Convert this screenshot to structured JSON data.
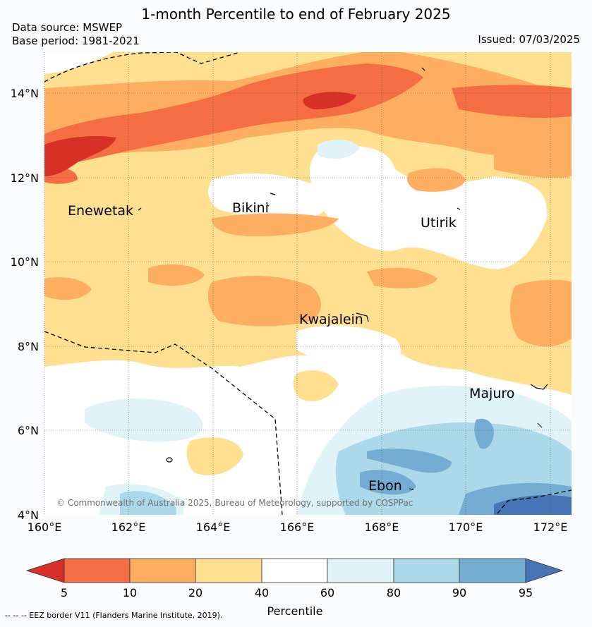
{
  "title": "1-month Percentile to end of February 2025",
  "data_source": "Data source: MSWEP",
  "base_period": "Base period: 1981-2021",
  "issued": "Issued: 07/03/2025",
  "map": {
    "lon_ticks": [
      "160°E",
      "162°E",
      "164°E",
      "166°E",
      "168°E",
      "170°E",
      "172°E"
    ],
    "lat_ticks": [
      "14°N",
      "12°N",
      "10°N",
      "8°N",
      "6°N",
      "4°N"
    ],
    "places": [
      {
        "id": "enewetak",
        "name": "Enewetak"
      },
      {
        "id": "bikini",
        "name": "Bikini"
      },
      {
        "id": "utirik",
        "name": "Utirik"
      },
      {
        "id": "kwajalein",
        "name": "Kwajalein"
      },
      {
        "id": "majuro",
        "name": "Majuro"
      },
      {
        "id": "ebon",
        "name": "Ebon"
      }
    ],
    "copyright": "© Commonwealth of Australia 2025, Bureau of Meteorology, supported by COSPPac"
  },
  "colorbar": {
    "title": "Percentile",
    "labels": [
      "5",
      "10",
      "20",
      "40",
      "60",
      "80",
      "90",
      "95"
    ],
    "colors": [
      "#d73027",
      "#f46d43",
      "#fdae61",
      "#fee090",
      "#ffffff",
      "#e0f3f8",
      "#abd9e9",
      "#74add1",
      "#4575b4"
    ]
  },
  "footnote": "--  --  -- EEZ border V11 (Flanders Marine Institute, 2019)."
}
